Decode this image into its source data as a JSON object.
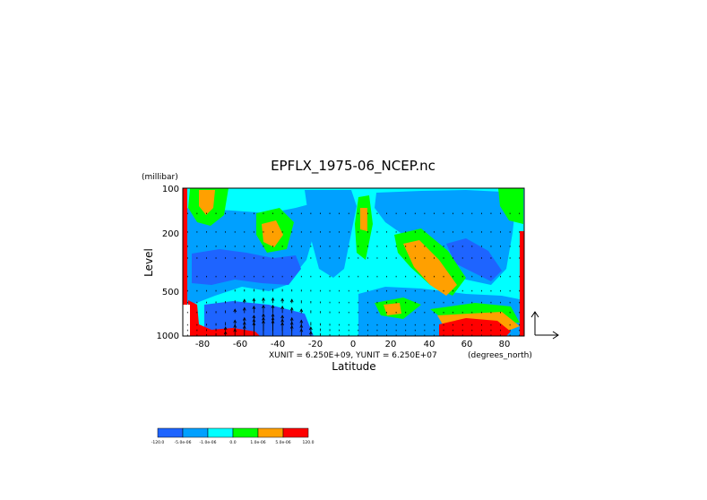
{
  "chart_data": {
    "type": "heatmap",
    "title": "EPFLX_1975-06_NCEP.nc",
    "xlabel": "Latitude",
    "ylabel": "Level",
    "yunits": "(millibar)",
    "xunits": "(degrees_north)",
    "unit_note": "XUNIT = 6.250E+09, YUNIT = 6.250E+07",
    "xlim": [
      -90,
      90
    ],
    "ylim": [
      1000,
      100
    ],
    "yscale": "log",
    "x_ticks": [
      "-80",
      "-60",
      "-40",
      "-20",
      "0",
      "20",
      "40",
      "60",
      "80"
    ],
    "y_ticks": [
      "100",
      "200",
      "500",
      "1000"
    ],
    "legend": {
      "position": "bottom-left",
      "colors": [
        "#1e64ff",
        "#00a0ff",
        "#00ffff",
        "#00ff00",
        "#ffa000",
        "#ff0000"
      ],
      "labels": [
        "-120.0",
        "-5.0e-06",
        "-1.0e-06",
        "0.0",
        "1.0e-06",
        "5.0e-06",
        "120.0"
      ]
    },
    "regions": [
      {
        "color": "#00ffff",
        "desc": "background"
      },
      {
        "color": "#00a0ff",
        "desc": "SH mid-level band"
      },
      {
        "color": "#1e64ff",
        "desc": "SH 300-500 mb core"
      },
      {
        "color": "#00ff00",
        "desc": "high latitude upper levels"
      },
      {
        "color": "#ffa000",
        "desc": "positive pockets"
      },
      {
        "color": "#ff0000",
        "desc": "surface maxima"
      }
    ],
    "vectors": "EP flux arrows, strongest near -60 to -30 at 700-1000 mb"
  }
}
